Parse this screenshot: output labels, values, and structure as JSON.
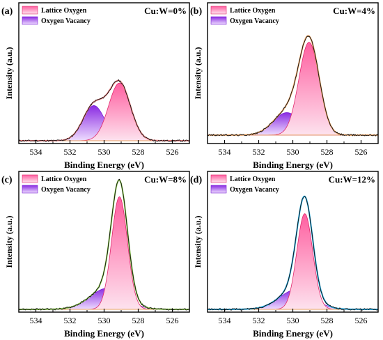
{
  "figure": {
    "panels": [
      {
        "tag": "(a)",
        "ratio_label": "Cu:W=0%",
        "xlabel": "Binding Energy (eV)",
        "ylabel": "Intensity (a.u.)"
      },
      {
        "tag": "(b)",
        "ratio_label": "Cu:W=4%",
        "xlabel": "Binding Energy (eV)",
        "ylabel": "Intensity (a.u.)"
      },
      {
        "tag": "(c)",
        "ratio_label": "Cu:W=8%",
        "xlabel": "Binding Energy (eV)",
        "ylabel": "Intensity (a.u.)"
      },
      {
        "tag": "(d)",
        "ratio_label": "Cu:W=12%",
        "xlabel": "Binding Energy (eV)",
        "ylabel": "Intensity (a.u.)"
      }
    ]
  },
  "colors": {
    "lattice_fill_top": "#ff5fa0",
    "lattice_fill_bottom": "#fde2ee",
    "lattice_line": "#e0286c",
    "vacancy_fill_top": "#8a2be2",
    "vacancy_fill_bottom": "#eedcff",
    "vacancy_line": "#7a1fd6",
    "raw_data": "#111111",
    "baseline": "#e8a060"
  },
  "chart_data": [
    {
      "type": "area",
      "title": "Cu:W=0%",
      "xlabel": "Binding Energy (eV)",
      "ylabel": "Intensity (a.u.)",
      "x_reversed": true,
      "xlim": [
        535,
        525
      ],
      "ylim": [
        0,
        1
      ],
      "xticks": [
        534,
        532,
        530,
        528,
        526
      ],
      "y_tick_labels": false,
      "legend": {
        "position": "top-left",
        "entries": [
          "Lattice Oxygen",
          "Oxygen Vacancy"
        ]
      },
      "fit_color": "#f08080",
      "baseline": 0.02,
      "series": [
        {
          "name": "Lattice Oxygen",
          "model": "gaussian",
          "center": 529.1,
          "height": 0.41,
          "fwhm": 1.5
        },
        {
          "name": "Oxygen Vacancy",
          "model": "gaussian",
          "center": 530.6,
          "height": 0.25,
          "fwhm": 1.5
        }
      ]
    },
    {
      "type": "area",
      "title": "Cu:W=4%",
      "xlabel": "Binding Energy (eV)",
      "ylabel": "Intensity (a.u.)",
      "x_reversed": true,
      "xlim": [
        535,
        525
      ],
      "ylim": [
        0,
        1
      ],
      "xticks": [
        534,
        532,
        530,
        528,
        526
      ],
      "y_tick_labels": false,
      "legend": {
        "position": "top-left",
        "entries": [
          "Lattice Oxygen",
          "Oxygen Vacancy"
        ]
      },
      "fit_color": "#e8a060",
      "baseline": 0.06,
      "series": [
        {
          "name": "Lattice Oxygen",
          "model": "gaussian",
          "center": 529.05,
          "height": 0.66,
          "fwhm": 1.4
        },
        {
          "name": "Oxygen Vacancy",
          "model": "gaussian",
          "center": 530.35,
          "height": 0.16,
          "fwhm": 1.9
        }
      ]
    },
    {
      "type": "area",
      "title": "Cu:W=8%",
      "xlabel": "Binding Energy (eV)",
      "ylabel": "Intensity (a.u.)",
      "x_reversed": true,
      "xlim": [
        535,
        525
      ],
      "ylim": [
        0,
        1
      ],
      "xticks": [
        534,
        532,
        530,
        528,
        526
      ],
      "y_tick_labels": false,
      "legend": {
        "position": "top-left",
        "entries": [
          "Lattice Oxygen",
          "Oxygen Vacancy"
        ]
      },
      "fit_color": "#90d050",
      "baseline": 0.02,
      "series": [
        {
          "name": "Lattice Oxygen",
          "model": "gaussian",
          "center": 529.1,
          "height": 0.8,
          "fwhm": 1.1
        },
        {
          "name": "Oxygen Vacancy",
          "model": "gaussian",
          "center": 529.8,
          "height": 0.15,
          "fwhm": 2.4
        }
      ]
    },
    {
      "type": "area",
      "title": "Cu:W=12%",
      "xlabel": "Binding Energy (eV)",
      "ylabel": "Intensity (a.u.)",
      "x_reversed": true,
      "xlim": [
        535,
        525
      ],
      "ylim": [
        0,
        1
      ],
      "xticks": [
        534,
        532,
        530,
        528,
        526
      ],
      "y_tick_labels": false,
      "legend": {
        "position": "top-left",
        "entries": [
          "Lattice Oxygen",
          "Oxygen Vacancy"
        ]
      },
      "fit_color": "#20a8e0",
      "baseline": 0.02,
      "series": [
        {
          "name": "Lattice Oxygen",
          "model": "gaussian",
          "center": 529.3,
          "height": 0.68,
          "fwhm": 1.1
        },
        {
          "name": "Oxygen Vacancy",
          "model": "gaussian",
          "center": 529.8,
          "height": 0.14,
          "fwhm": 2.3
        }
      ]
    }
  ]
}
